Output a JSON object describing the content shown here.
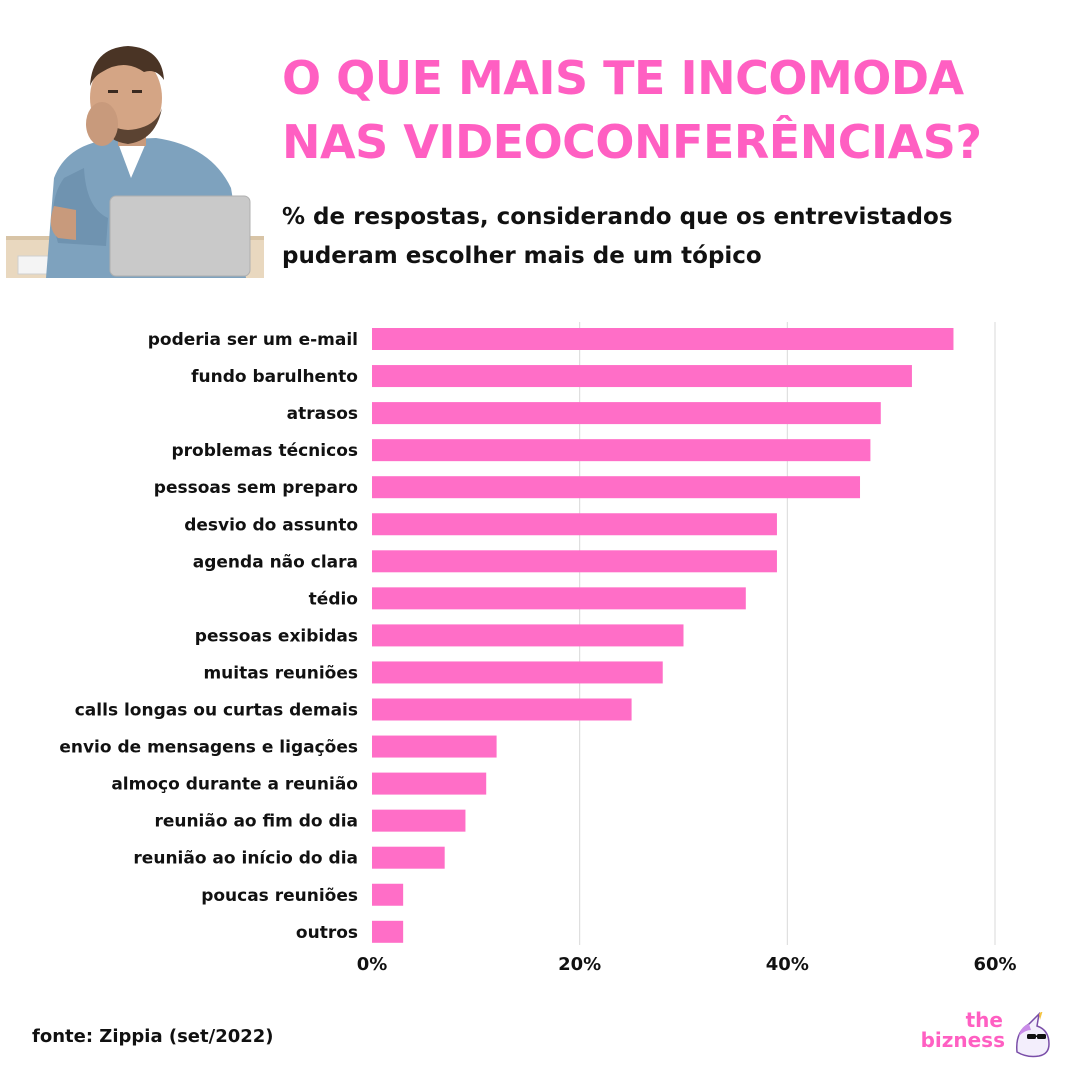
{
  "header": {
    "title": "O QUE MAIS TE INCOMODA\nNAS VIDEOCONFERÊNCIAS?",
    "subtitle": "% de respostas, considerando que os entrevistados\npuderam escolher mais de um tópico"
  },
  "chart_data": {
    "type": "bar",
    "orientation": "horizontal",
    "categories": [
      "poderia ser um e-mail",
      "fundo barulhento",
      "atrasos",
      "problemas técnicos",
      "pessoas sem preparo",
      "desvio do assunto",
      "agenda não clara",
      "tédio",
      "pessoas exibidas",
      "muitas reuniões",
      "calls longas ou curtas demais",
      "envio de mensagens e ligações",
      "almoço durante a reunião",
      "reunião ao fim do dia",
      "reunião ao início do dia",
      "poucas reuniões",
      "outros"
    ],
    "values": [
      56,
      52,
      49,
      48,
      47,
      39,
      39,
      36,
      30,
      28,
      25,
      12,
      11,
      9,
      7,
      3,
      3
    ],
    "xlim": [
      0,
      60
    ],
    "xticks": [
      0,
      20,
      40,
      60
    ],
    "xtick_labels": [
      "0%",
      "20%",
      "40%",
      "60%"
    ],
    "grid": true,
    "bar_color": "#ff6ec7"
  },
  "footer": {
    "source": "fonte: Zippia (set/2022)",
    "brand_line1": "the",
    "brand_line2": "bizness",
    "brand_icon": "unicorn-icon"
  },
  "colors": {
    "accent": "#ff5fc2",
    "bar": "#ff6ec7",
    "text": "#111111",
    "grid": "#d9d9d9"
  }
}
